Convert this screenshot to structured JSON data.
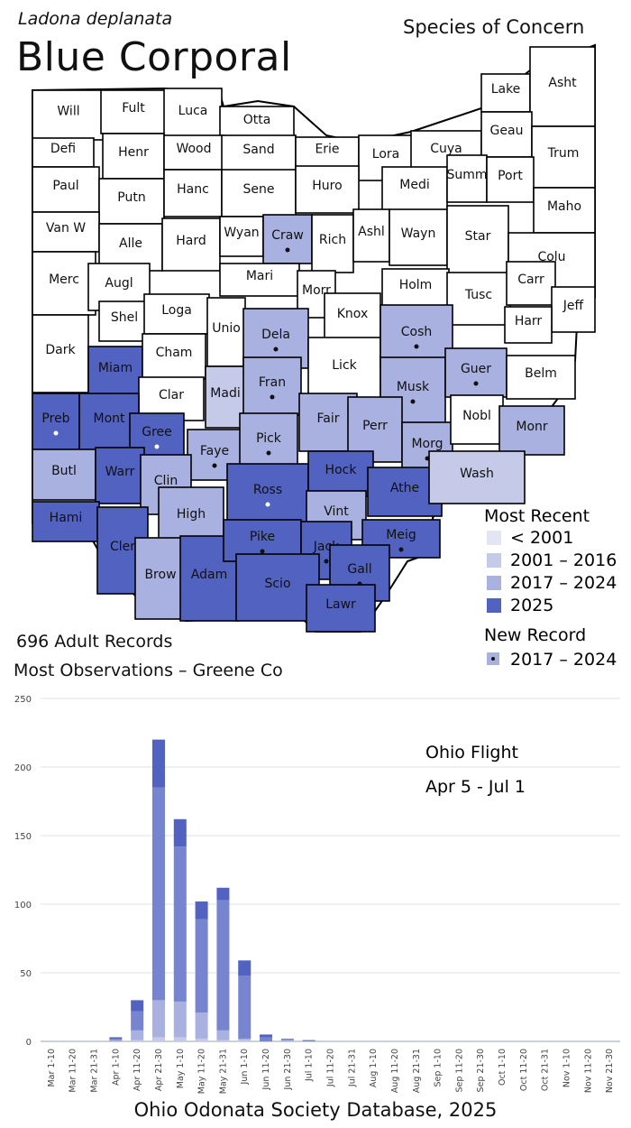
{
  "header": {
    "scientific_name": "Ladona deplanata",
    "common_name": "Blue Corporal",
    "status": "Species of Concern"
  },
  "colors": {
    "pre2001": "#e3e5f5",
    "y2001_2016": "#c5cae9",
    "y2017_2024": "#a9b1e1",
    "y2025": "#5162c1",
    "none": "#ffffff",
    "bar_dark": "#5162c1",
    "bar_mid": "#7784d0",
    "bar_light": "#a9b1e1",
    "bar_pale": "#c5cae9"
  },
  "counties": [
    {
      "name": "Will",
      "status": "none"
    },
    {
      "name": "Fult",
      "status": "none"
    },
    {
      "name": "Luca",
      "status": "none"
    },
    {
      "name": "Otta",
      "status": "none"
    },
    {
      "name": "Defi",
      "status": "none"
    },
    {
      "name": "Henr",
      "status": "none"
    },
    {
      "name": "Wood",
      "status": "none"
    },
    {
      "name": "Sand",
      "status": "none"
    },
    {
      "name": "Erie",
      "status": "none"
    },
    {
      "name": "Lora",
      "status": "none"
    },
    {
      "name": "Cuya",
      "status": "none"
    },
    {
      "name": "Lake",
      "status": "none"
    },
    {
      "name": "Asht",
      "status": "none"
    },
    {
      "name": "Geau",
      "status": "none"
    },
    {
      "name": "Trum",
      "status": "none"
    },
    {
      "name": "Paul",
      "status": "none"
    },
    {
      "name": "Putn",
      "status": "none"
    },
    {
      "name": "Hanc",
      "status": "none"
    },
    {
      "name": "Sene",
      "status": "none"
    },
    {
      "name": "Huro",
      "status": "none"
    },
    {
      "name": "Medi",
      "status": "none"
    },
    {
      "name": "Summ",
      "status": "none"
    },
    {
      "name": "Port",
      "status": "none"
    },
    {
      "name": "Maho",
      "status": "none"
    },
    {
      "name": "Van W",
      "status": "none"
    },
    {
      "name": "Alle",
      "status": "none"
    },
    {
      "name": "Hard",
      "status": "none"
    },
    {
      "name": "Wyan",
      "status": "none"
    },
    {
      "name": "Craw",
      "status": "2017-2024",
      "new": "2017-2024"
    },
    {
      "name": "Rich",
      "status": "none"
    },
    {
      "name": "Ashl",
      "status": "none"
    },
    {
      "name": "Wayn",
      "status": "none"
    },
    {
      "name": "Star",
      "status": "none"
    },
    {
      "name": "Colu",
      "status": "none"
    },
    {
      "name": "Merc",
      "status": "none"
    },
    {
      "name": "Augl",
      "status": "none"
    },
    {
      "name": "Mari",
      "status": "none"
    },
    {
      "name": "Morr",
      "status": "none"
    },
    {
      "name": "Knox",
      "status": "none"
    },
    {
      "name": "Holm",
      "status": "none"
    },
    {
      "name": "Tusc",
      "status": "none"
    },
    {
      "name": "Carr",
      "status": "none"
    },
    {
      "name": "Jeff",
      "status": "none"
    },
    {
      "name": "Harr",
      "status": "none"
    },
    {
      "name": "Shel",
      "status": "none"
    },
    {
      "name": "Loga",
      "status": "none"
    },
    {
      "name": "Unio",
      "status": "none"
    },
    {
      "name": "Dela",
      "status": "2017-2024",
      "new": "2017-2024"
    },
    {
      "name": "Lick",
      "status": "none"
    },
    {
      "name": "Cosh",
      "status": "2017-2024",
      "new": "2017-2024"
    },
    {
      "name": "Dark",
      "status": "none"
    },
    {
      "name": "Miam",
      "status": "2025"
    },
    {
      "name": "Cham",
      "status": "none"
    },
    {
      "name": "Madi",
      "status": "2001-2016"
    },
    {
      "name": "Fran",
      "status": "2017-2024",
      "new": "2017-2024"
    },
    {
      "name": "Musk",
      "status": "2017-2024",
      "new": "2017-2024"
    },
    {
      "name": "Guer",
      "status": "2017-2024",
      "new": "2017-2024"
    },
    {
      "name": "Belm",
      "status": "none"
    },
    {
      "name": "Clar",
      "status": "none"
    },
    {
      "name": "Preb",
      "status": "2025",
      "new": "2025"
    },
    {
      "name": "Mont",
      "status": "2025"
    },
    {
      "name": "Gree",
      "status": "2025",
      "new": "2025"
    },
    {
      "name": "Faye",
      "status": "2017-2024",
      "new": "2017-2024"
    },
    {
      "name": "Pick",
      "status": "2017-2024",
      "new": "2017-2024"
    },
    {
      "name": "Fair",
      "status": "2017-2024"
    },
    {
      "name": "Perr",
      "status": "2017-2024"
    },
    {
      "name": "Morg",
      "status": "2017-2024",
      "new": "2017-2024"
    },
    {
      "name": "Nobl",
      "status": "none"
    },
    {
      "name": "Monr",
      "status": "2017-2024"
    },
    {
      "name": "Butl",
      "status": "2017-2024"
    },
    {
      "name": "Warr",
      "status": "2025"
    },
    {
      "name": "Clin",
      "status": "2017-2024",
      "new": "2017-2024"
    },
    {
      "name": "Ross",
      "status": "2025",
      "new": "2025"
    },
    {
      "name": "Hock",
      "status": "2025"
    },
    {
      "name": "Athe",
      "status": "2025"
    },
    {
      "name": "Wash",
      "status": "2001-2016"
    },
    {
      "name": "Hami",
      "status": "2025"
    },
    {
      "name": "Cler",
      "status": "2025"
    },
    {
      "name": "High",
      "status": "2017-2024"
    },
    {
      "name": "Vint",
      "status": "2017-2024"
    },
    {
      "name": "Meig",
      "status": "2025",
      "new": "2017-2024"
    },
    {
      "name": "Brow",
      "status": "2017-2024"
    },
    {
      "name": "Adam",
      "status": "2025"
    },
    {
      "name": "Pike",
      "status": "2025",
      "new": "2017-2024"
    },
    {
      "name": "Jack",
      "status": "2025",
      "new": "2017-2024"
    },
    {
      "name": "Gall",
      "status": "2025",
      "new": "2017-2024"
    },
    {
      "name": "Scio",
      "status": "2025"
    },
    {
      "name": "Lawr",
      "status": "2025"
    }
  ],
  "legend": {
    "most_recent_title": "Most Recent",
    "items": [
      {
        "label": "< 2001",
        "key": "pre2001"
      },
      {
        "label": "2001 – 2016",
        "key": "y2001_2016"
      },
      {
        "label": "2017 – 2024",
        "key": "y2017_2024"
      },
      {
        "label": "2025",
        "key": "y2025"
      }
    ],
    "new_record_title": "New Record",
    "new_items": [
      {
        "label": "2017 – 2024",
        "key": "y2017_2024"
      },
      {
        "label": "2025",
        "key": "y2025"
      }
    ]
  },
  "stats": {
    "records": "696 Adult Records",
    "most_obs": "Most Observations – Greene Co"
  },
  "chart_data": {
    "type": "bar",
    "stacked": true,
    "title": "Ohio Flight",
    "subtitle": "Apr 5 - Jul 1",
    "ylim": [
      0,
      250
    ],
    "yticks": [
      0,
      50,
      100,
      150,
      200,
      250
    ],
    "grid": true,
    "categories": [
      "Mar 1-10",
      "Mar 11-20",
      "Mar 21-31",
      "Apr 1-10",
      "Apr 11-20",
      "Apr 21-30",
      "May 1-10",
      "May 11-20",
      "May 21-31",
      "Jun 1-10",
      "Jun 11-20",
      "Jun 21-30",
      "Jul 1-10",
      "Jul 11-20",
      "Jul 21-31",
      "Aug 1-10",
      "Aug 11-20",
      "Aug 21-31",
      "Sep 1-10",
      "Sep 11-20",
      "Sep 21-30",
      "Oct 1-10",
      "Oct 11-20",
      "Oct 21-31",
      "Nov 1-10",
      "Nov 11-20",
      "Nov 21-30"
    ],
    "series": [
      {
        "color_key": "bar_pale",
        "values": [
          0,
          0,
          0,
          0,
          1,
          3,
          3,
          2,
          1,
          1,
          0,
          0,
          0,
          0,
          0,
          0,
          0,
          0,
          0,
          0,
          0,
          0,
          0,
          0,
          0,
          0,
          0
        ]
      },
      {
        "color_key": "bar_light",
        "values": [
          0,
          0,
          0,
          1,
          7,
          27,
          26,
          19,
          7,
          1,
          0,
          1,
          0,
          0,
          0,
          0,
          0,
          0,
          0,
          0,
          0,
          0,
          0,
          0,
          0,
          0,
          0
        ]
      },
      {
        "color_key": "bar_mid",
        "values": [
          0,
          0,
          0,
          1,
          14,
          155,
          113,
          68,
          95,
          46,
          3,
          1,
          1,
          0,
          0,
          0,
          0,
          0,
          0,
          0,
          0,
          0,
          0,
          0,
          0,
          0,
          0
        ]
      },
      {
        "color_key": "bar_dark",
        "values": [
          0,
          0,
          0,
          1,
          8,
          35,
          20,
          13,
          9,
          11,
          2,
          0,
          0,
          0,
          0,
          0,
          0,
          0,
          0,
          0,
          0,
          0,
          0,
          0,
          0,
          0,
          0
        ]
      }
    ]
  },
  "footer": "Ohio Odonata Society Database, 2025"
}
